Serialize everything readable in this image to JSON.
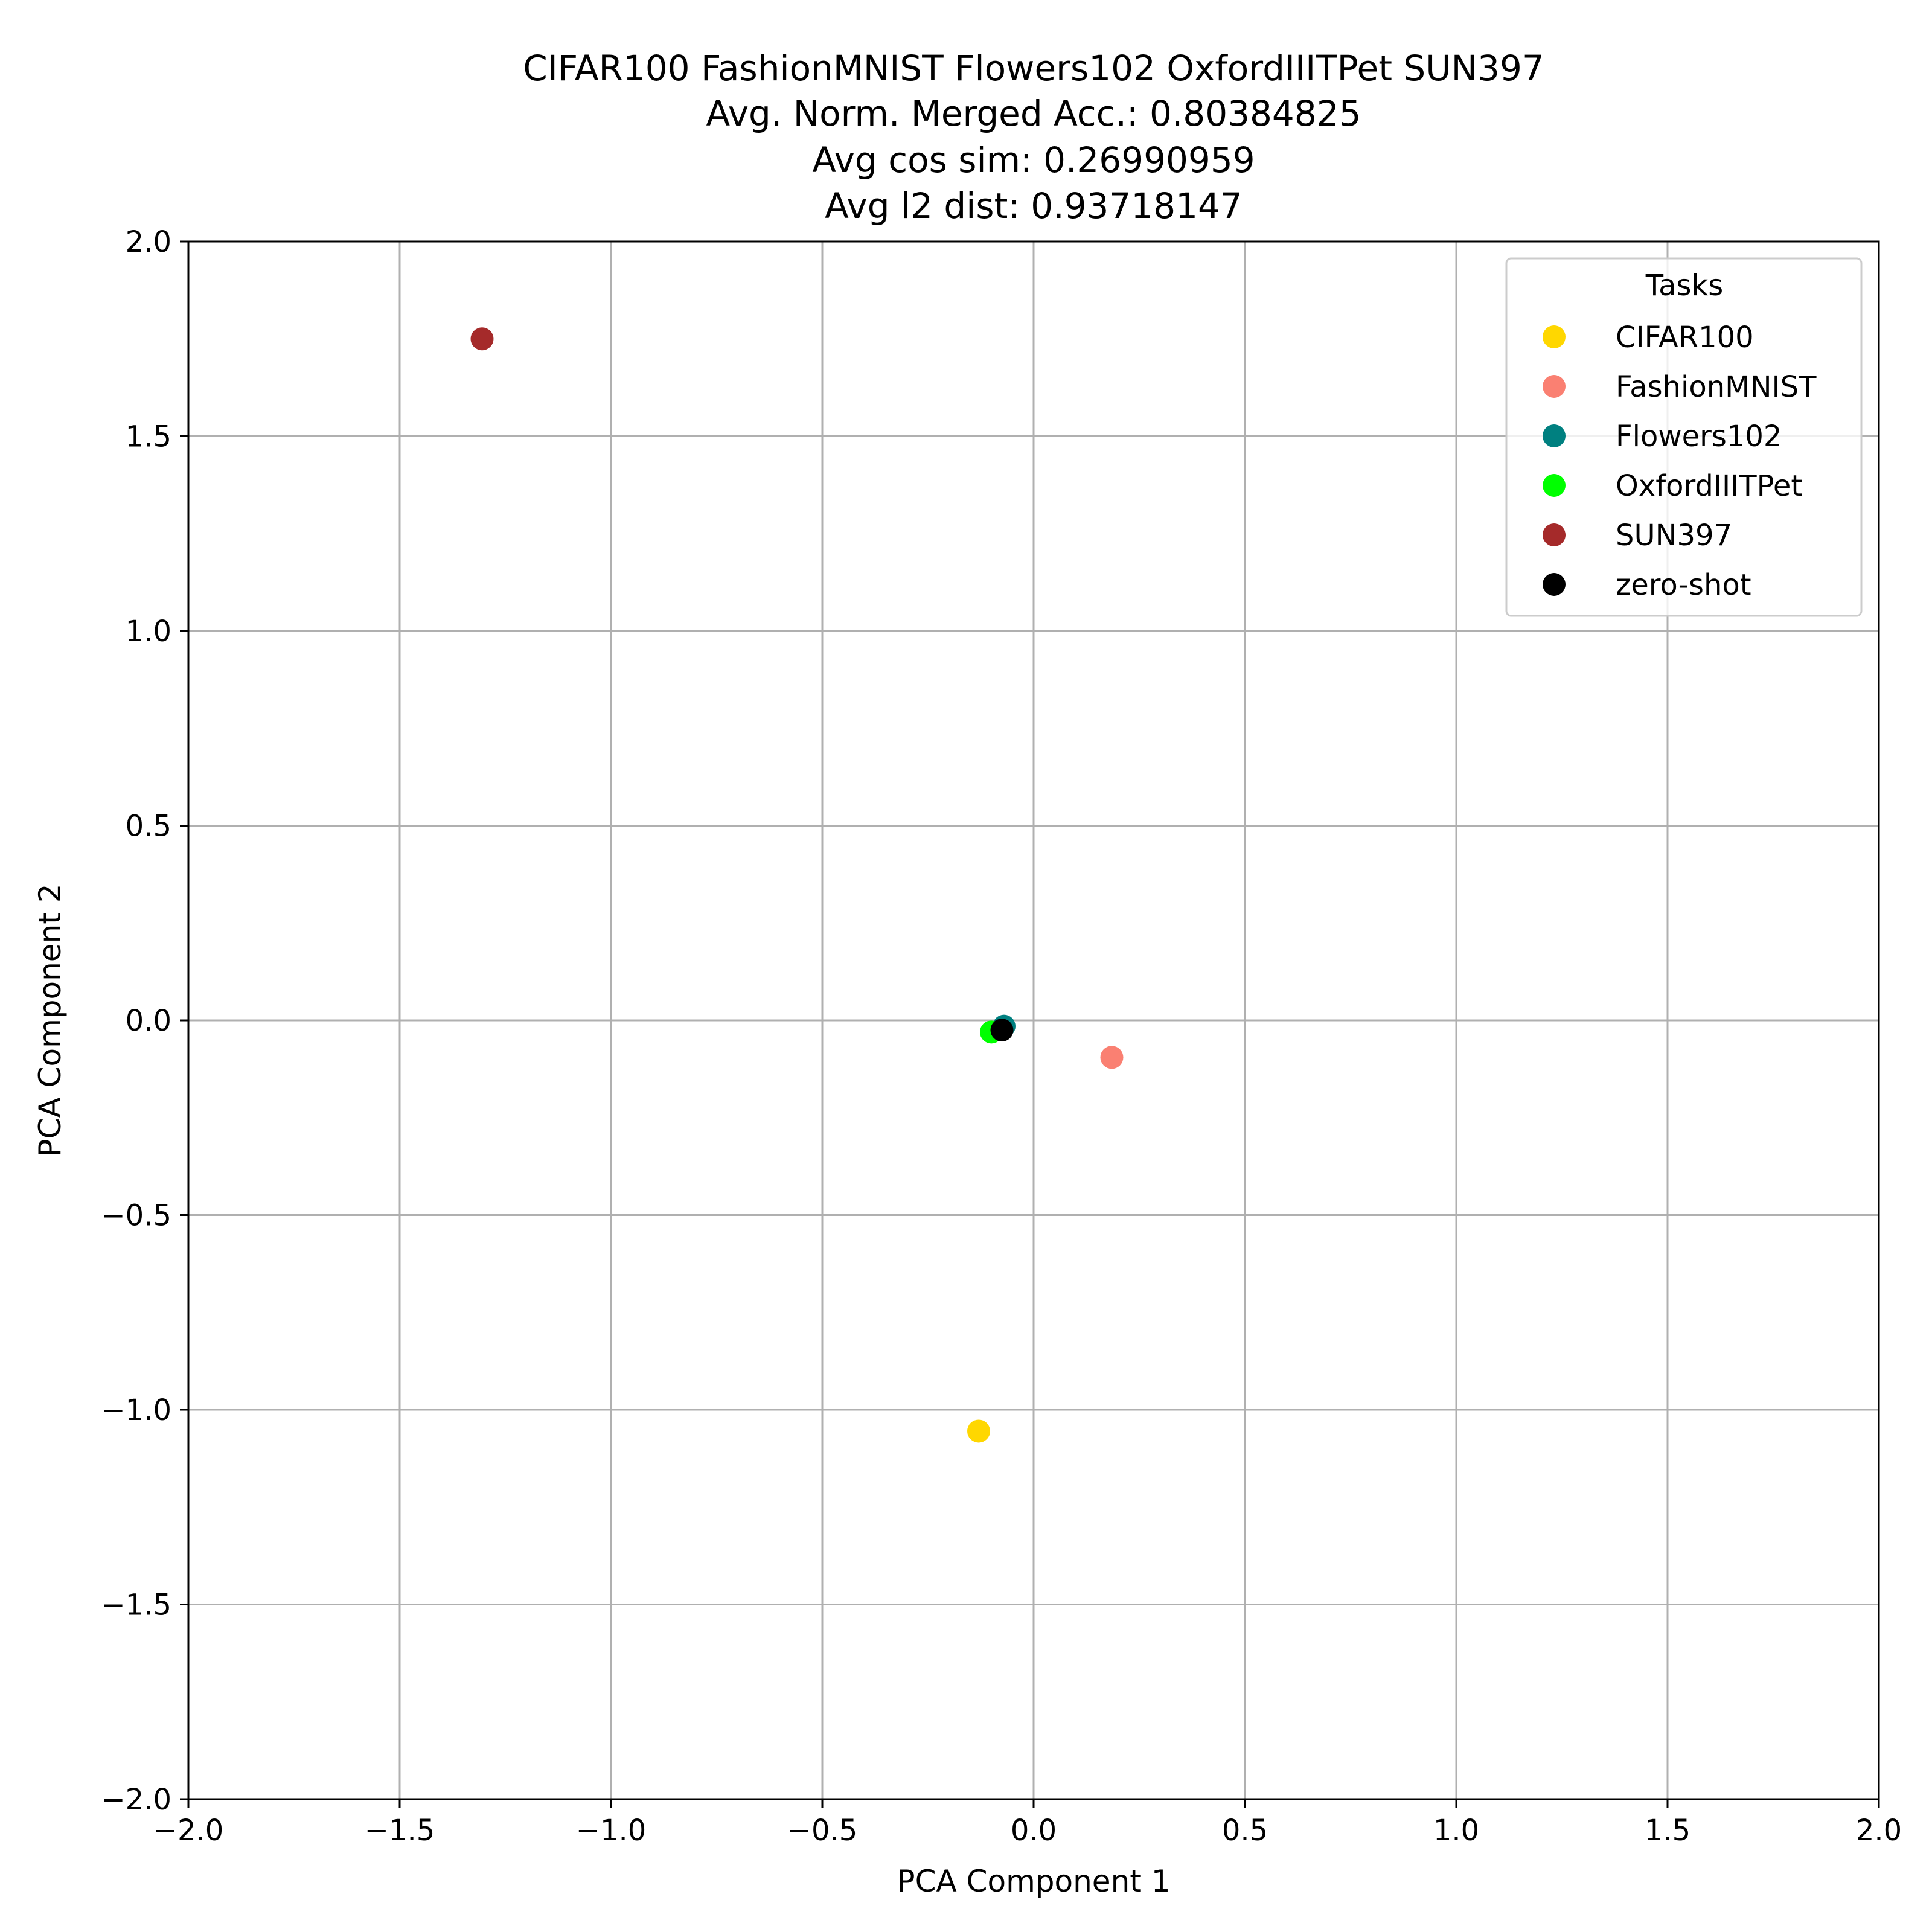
{
  "chart_data": {
    "type": "scatter",
    "title_lines": [
      "CIFAR100 FashionMNIST Flowers102 OxfordIIITPet SUN397",
      "Avg. Norm. Merged Acc.: 0.80384825",
      "Avg cos sim: 0.26990959",
      "Avg l2 dist: 0.93718147"
    ],
    "xlabel": "PCA Component 1",
    "ylabel": "PCA Component 2",
    "xlim": [
      -2.0,
      2.0
    ],
    "ylim": [
      -2.0,
      2.0
    ],
    "x_ticks": [
      -2.0,
      -1.5,
      -1.0,
      -0.5,
      0.0,
      0.5,
      1.0,
      1.5,
      2.0
    ],
    "x_tick_labels": [
      "−2.0",
      "−1.5",
      "−1.0",
      "−0.5",
      "0.0",
      "0.5",
      "1.0",
      "1.5",
      "2.0"
    ],
    "y_ticks": [
      -2.0,
      -1.5,
      -1.0,
      -0.5,
      0.0,
      0.5,
      1.0,
      1.5,
      2.0
    ],
    "y_tick_labels": [
      "−2.0",
      "−1.5",
      "−1.0",
      "−0.5",
      "0.0",
      "0.5",
      "1.0",
      "1.5",
      "2.0"
    ],
    "grid": true,
    "legend": {
      "title": "Tasks",
      "placement": "top-right"
    },
    "series": [
      {
        "name": "CIFAR100",
        "color": "#FFD700",
        "points": [
          {
            "x": -0.13,
            "y": -1.055
          }
        ]
      },
      {
        "name": "FashionMNIST",
        "color": "#FA8072",
        "points": [
          {
            "x": 0.185,
            "y": -0.095
          }
        ]
      },
      {
        "name": "Flowers102",
        "color": "#008080",
        "points": [
          {
            "x": -0.07,
            "y": -0.015
          }
        ]
      },
      {
        "name": "OxfordIIITPet",
        "color": "#00FF00",
        "points": [
          {
            "x": -0.1,
            "y": -0.03
          }
        ]
      },
      {
        "name": "SUN397",
        "color": "#A52A2A",
        "points": [
          {
            "x": -1.305,
            "y": 1.75
          }
        ]
      },
      {
        "name": "zero-shot",
        "color": "#000000",
        "points": [
          {
            "x": -0.075,
            "y": -0.025
          }
        ]
      }
    ]
  }
}
